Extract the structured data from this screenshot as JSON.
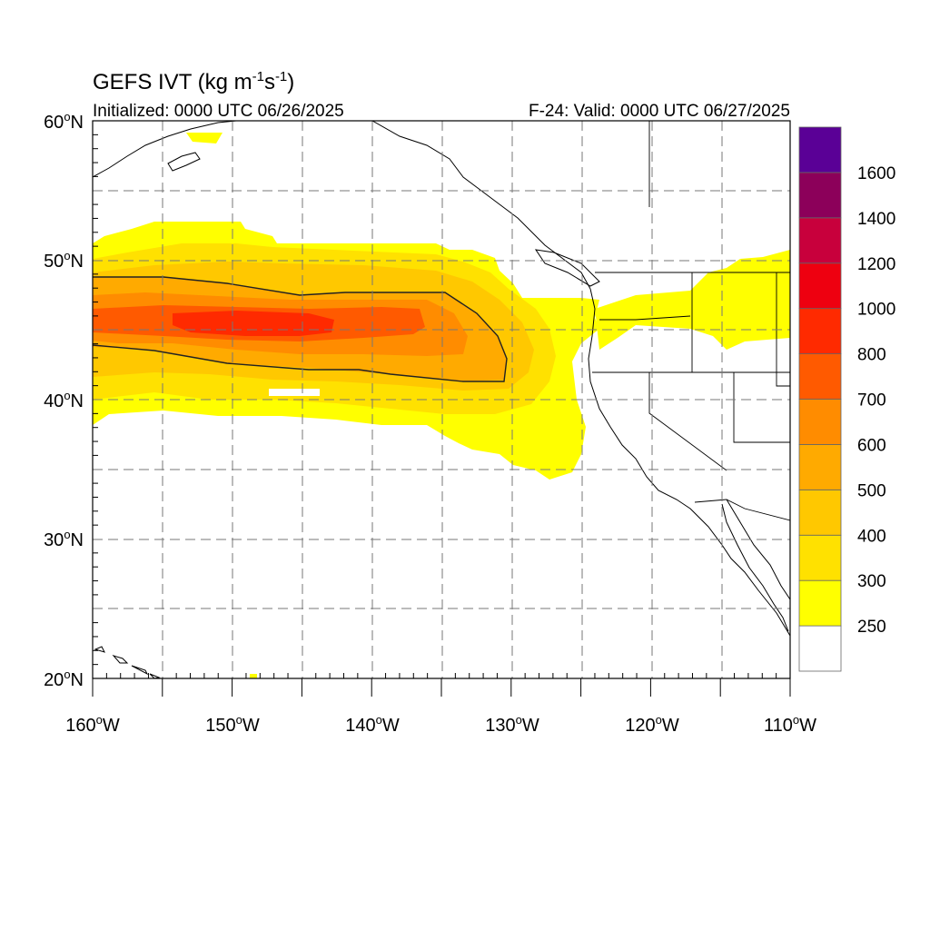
{
  "title": {
    "main": "GEFS IVT (kg m",
    "exp1": "-1",
    "mid": "s",
    "exp2": "-1",
    "close": ")"
  },
  "subtitle_left": "Initialized: 0000 UTC 06/26/2025",
  "subtitle_right": "F-24: Valid: 0000 UTC 06/27/2025",
  "map": {
    "lon_range": [
      -160,
      -110
    ],
    "lat_range": [
      20,
      60
    ],
    "lat_labels": [
      {
        "num": "20",
        "dir": "N"
      },
      {
        "num": "30",
        "dir": "N"
      },
      {
        "num": "40",
        "dir": "N"
      },
      {
        "num": "50",
        "dir": "N"
      },
      {
        "num": "60",
        "dir": "N"
      }
    ],
    "lon_labels": [
      {
        "num": "160",
        "dir": "W"
      },
      {
        "num": "150",
        "dir": "W"
      },
      {
        "num": "140",
        "dir": "W"
      },
      {
        "num": "130",
        "dir": "W"
      },
      {
        "num": "120",
        "dir": "W"
      },
      {
        "num": "110",
        "dir": "W"
      }
    ],
    "gridlines": "dashed every 5 degrees",
    "contour": "black line at 500"
  },
  "colorbar": {
    "labels": [
      "250",
      "300",
      "400",
      "500",
      "600",
      "700",
      "800",
      "1000",
      "1200",
      "1400",
      "1600"
    ],
    "colors": [
      "#ffffff",
      "#ffff00",
      "#ffe100",
      "#ffc800",
      "#ffaa00",
      "#ff8c00",
      "#ff5a00",
      "#ff2a00",
      "#ee0010",
      "#c8003c",
      "#8c005a",
      "#5a0096"
    ]
  }
}
